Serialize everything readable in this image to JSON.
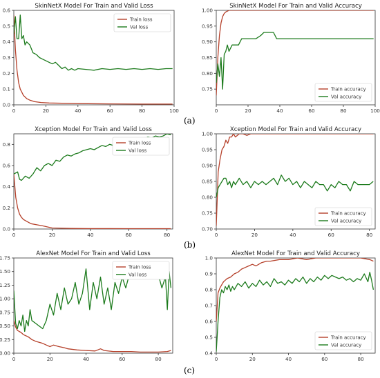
{
  "panel_labels": [
    "(a)",
    "(b)",
    "(c)"
  ],
  "colors": {
    "train": "#b5402a",
    "val": "#1b7a1b"
  },
  "chart_data": [
    {
      "type": "line",
      "title": "SkinNetX Model For Train and Valid Loss",
      "xlabel": "",
      "ylabel": "",
      "xlim": [
        0,
        100
      ],
      "ylim": [
        0,
        0.6
      ],
      "xticks": [
        "0",
        "20",
        "40",
        "60",
        "80",
        "100"
      ],
      "yticks": [
        "0.0",
        "0.1",
        "0.2",
        "0.3",
        "0.4",
        "0.5",
        "0.6"
      ],
      "legend": "top-right",
      "grid": false,
      "series": [
        {
          "name": "Train loss",
          "x": [
            0,
            1,
            2,
            3,
            4,
            5,
            6,
            8,
            10,
            13,
            17,
            22,
            30,
            40,
            60,
            80,
            99
          ],
          "y": [
            0.57,
            0.35,
            0.22,
            0.14,
            0.1,
            0.08,
            0.06,
            0.04,
            0.03,
            0.02,
            0.015,
            0.012,
            0.01,
            0.008,
            0.006,
            0.005,
            0.005
          ]
        },
        {
          "name": "Val loss",
          "x": [
            0,
            1,
            2,
            3,
            4,
            5,
            6,
            7,
            8,
            10,
            12,
            14,
            16,
            18,
            20,
            22,
            24,
            26,
            28,
            30,
            32,
            34,
            36,
            38,
            40,
            45,
            50,
            55,
            60,
            65,
            70,
            75,
            80,
            85,
            90,
            95,
            99
          ],
          "y": [
            0.45,
            0.56,
            0.42,
            0.42,
            0.57,
            0.42,
            0.44,
            0.38,
            0.4,
            0.38,
            0.33,
            0.32,
            0.3,
            0.29,
            0.28,
            0.27,
            0.26,
            0.27,
            0.25,
            0.23,
            0.24,
            0.22,
            0.23,
            0.22,
            0.23,
            0.225,
            0.22,
            0.23,
            0.225,
            0.23,
            0.225,
            0.23,
            0.225,
            0.23,
            0.225,
            0.23,
            0.23
          ]
        }
      ]
    },
    {
      "type": "line",
      "title": "SkinNetX Model For Train and Valid Accuracy",
      "xlabel": "",
      "ylabel": "",
      "xlim": [
        0,
        100
      ],
      "ylim": [
        0.7,
        1.0
      ],
      "xticks": [
        "0",
        "20",
        "40",
        "60",
        "80",
        "100"
      ],
      "yticks": [
        "0.75",
        "0.80",
        "0.85",
        "0.90",
        "0.95",
        "1.00"
      ],
      "legend": "bottom-right",
      "grid": false,
      "series": [
        {
          "name": "Train accuracy",
          "x": [
            0,
            1,
            2,
            3,
            4,
            5,
            6,
            8,
            10,
            15,
            20,
            40,
            60,
            80,
            99
          ],
          "y": [
            0.73,
            0.85,
            0.92,
            0.96,
            0.98,
            0.99,
            0.995,
            1.0,
            1.0,
            1.0,
            1.0,
            1.0,
            1.0,
            1.0,
            1.0
          ]
        },
        {
          "name": "Val accuracy",
          "x": [
            0,
            1,
            2,
            3,
            4,
            5,
            6,
            7,
            8,
            10,
            12,
            14,
            16,
            18,
            20,
            25,
            28,
            30,
            32,
            34,
            36,
            37,
            38,
            40,
            45,
            50,
            60,
            70,
            80,
            90,
            99
          ],
          "y": [
            0.77,
            0.83,
            0.79,
            0.85,
            0.75,
            0.86,
            0.87,
            0.89,
            0.87,
            0.89,
            0.89,
            0.89,
            0.91,
            0.91,
            0.91,
            0.91,
            0.92,
            0.93,
            0.93,
            0.93,
            0.93,
            0.92,
            0.91,
            0.91,
            0.91,
            0.91,
            0.91,
            0.91,
            0.91,
            0.91,
            0.91
          ]
        }
      ]
    },
    {
      "type": "line",
      "title": "Xception Model For Train and Valid Loss",
      "xlabel": "",
      "ylabel": "",
      "xlim": [
        0,
        83
      ],
      "ylim": [
        0,
        0.9
      ],
      "xticks": [
        "0",
        "20",
        "40",
        "60",
        "80"
      ],
      "yticks": [
        "0.0",
        "0.2",
        "0.4",
        "0.6",
        "0.8"
      ],
      "legend": "top-right",
      "grid": false,
      "series": [
        {
          "name": "Train loss",
          "x": [
            0,
            1,
            2,
            3,
            4,
            5,
            7,
            9,
            12,
            15,
            20,
            30,
            40,
            50,
            60,
            70,
            82
          ],
          "y": [
            0.52,
            0.3,
            0.2,
            0.14,
            0.11,
            0.09,
            0.07,
            0.05,
            0.04,
            0.03,
            0.01,
            0.005,
            0.004,
            0.004,
            0.003,
            0.003,
            0.003
          ]
        },
        {
          "name": "Val loss",
          "x": [
            0,
            2,
            3,
            4,
            6,
            8,
            10,
            12,
            14,
            16,
            18,
            20,
            22,
            24,
            26,
            28,
            30,
            32,
            34,
            36,
            38,
            40,
            42,
            44,
            46,
            48,
            50,
            52,
            54,
            56,
            58,
            60,
            62,
            64,
            66,
            68,
            70,
            72,
            74,
            76,
            78,
            80,
            82
          ],
          "y": [
            0.52,
            0.54,
            0.47,
            0.46,
            0.5,
            0.48,
            0.52,
            0.58,
            0.55,
            0.6,
            0.62,
            0.6,
            0.65,
            0.64,
            0.68,
            0.7,
            0.69,
            0.71,
            0.72,
            0.74,
            0.75,
            0.76,
            0.75,
            0.77,
            0.79,
            0.78,
            0.8,
            0.79,
            0.81,
            0.83,
            0.82,
            0.84,
            0.85,
            0.83,
            0.86,
            0.85,
            0.87,
            0.86,
            0.88,
            0.87,
            0.88,
            0.9,
            0.89
          ]
        }
      ]
    },
    {
      "type": "line",
      "title": "Xception Model For Train and Valid Accuracy",
      "xlabel": "",
      "ylabel": "",
      "xlim": [
        0,
        83
      ],
      "ylim": [
        0.7,
        1.0
      ],
      "xticks": [
        "0",
        "20",
        "40",
        "60",
        "80"
      ],
      "yticks": [
        "0.70",
        "0.75",
        "0.80",
        "0.85",
        "0.90",
        "0.95",
        "1.00"
      ],
      "legend": "bottom-right",
      "grid": false,
      "series": [
        {
          "name": "Train accuracy",
          "x": [
            0,
            1,
            2,
            3,
            4,
            5,
            6,
            7,
            8,
            9,
            10,
            12,
            14,
            16,
            18,
            20,
            30,
            40,
            50,
            60,
            70,
            82
          ],
          "y": [
            0.71,
            0.88,
            0.92,
            0.95,
            0.96,
            0.98,
            0.97,
            0.99,
            0.99,
            1.0,
            0.99,
            1.0,
            1.0,
            0.995,
            1.0,
            1.0,
            1.0,
            1.0,
            1.0,
            1.0,
            1.0,
            1.0
          ]
        },
        {
          "name": "Val accuracy",
          "x": [
            0,
            1,
            2,
            3,
            4,
            5,
            6,
            7,
            8,
            9,
            10,
            12,
            14,
            16,
            18,
            20,
            22,
            24,
            26,
            28,
            30,
            32,
            34,
            36,
            38,
            40,
            42,
            44,
            46,
            48,
            50,
            52,
            54,
            56,
            58,
            60,
            62,
            64,
            66,
            68,
            70,
            72,
            74,
            76,
            78,
            80,
            82
          ],
          "y": [
            0.8,
            0.83,
            0.84,
            0.85,
            0.86,
            0.86,
            0.84,
            0.85,
            0.83,
            0.85,
            0.84,
            0.86,
            0.84,
            0.85,
            0.83,
            0.85,
            0.84,
            0.85,
            0.84,
            0.85,
            0.86,
            0.84,
            0.87,
            0.85,
            0.86,
            0.84,
            0.85,
            0.83,
            0.85,
            0.84,
            0.83,
            0.85,
            0.84,
            0.84,
            0.82,
            0.84,
            0.83,
            0.85,
            0.84,
            0.84,
            0.82,
            0.85,
            0.84,
            0.84,
            0.84,
            0.84,
            0.85
          ]
        }
      ]
    },
    {
      "type": "line",
      "title": "AlexNet Model For Train and Valid Loss",
      "xlabel": "",
      "ylabel": "",
      "xlim": [
        0,
        88
      ],
      "ylim": [
        0,
        1.75
      ],
      "xticks": [
        "0",
        "20",
        "40",
        "60",
        "80"
      ],
      "yticks": [
        "0.00",
        "0.25",
        "0.50",
        "0.75",
        "1.00",
        "1.25",
        "1.50",
        "1.75"
      ],
      "legend": "top-right",
      "grid": false,
      "series": [
        {
          "name": "Train loss",
          "x": [
            0,
            1,
            2,
            3,
            4,
            5,
            6,
            8,
            10,
            12,
            14,
            16,
            18,
            20,
            22,
            25,
            28,
            30,
            35,
            40,
            45,
            48,
            50,
            55,
            60,
            65,
            70,
            75,
            80,
            85,
            87
          ],
          "y": [
            0.6,
            0.48,
            0.42,
            0.4,
            0.38,
            0.35,
            0.33,
            0.3,
            0.25,
            0.22,
            0.2,
            0.18,
            0.15,
            0.12,
            0.15,
            0.12,
            0.1,
            0.08,
            0.06,
            0.05,
            0.04,
            0.08,
            0.05,
            0.03,
            0.03,
            0.03,
            0.02,
            0.02,
            0.02,
            0.03,
            0.05
          ]
        },
        {
          "name": "Val loss",
          "x": [
            0,
            1,
            2,
            3,
            4,
            5,
            6,
            7,
            8,
            9,
            10,
            12,
            14,
            16,
            18,
            20,
            22,
            24,
            26,
            28,
            30,
            32,
            34,
            36,
            38,
            40,
            42,
            44,
            46,
            48,
            50,
            52,
            54,
            56,
            58,
            60,
            62,
            64,
            66,
            68,
            70,
            72,
            74,
            76,
            78,
            80,
            82,
            84,
            85,
            86,
            87
          ],
          "y": [
            1.15,
            0.55,
            0.45,
            0.6,
            0.5,
            0.7,
            0.4,
            0.6,
            0.5,
            0.8,
            0.6,
            0.55,
            0.5,
            0.45,
            0.6,
            0.9,
            0.7,
            1.1,
            0.8,
            1.2,
            0.9,
            1.0,
            1.3,
            0.9,
            1.1,
            1.55,
            0.8,
            1.3,
            1.0,
            1.4,
            0.9,
            1.2,
            0.8,
            1.3,
            1.1,
            1.4,
            1.2,
            1.45,
            1.5,
            1.4,
            1.5,
            1.55,
            1.5,
            1.4,
            1.5,
            1.45,
            1.2,
            1.4,
            0.8,
            1.5,
            1.2
          ]
        }
      ]
    },
    {
      "type": "line",
      "title": "AlexNet Model For Train and Valid Accuracy",
      "xlabel": "",
      "ylabel": "",
      "xlim": [
        0,
        88
      ],
      "ylim": [
        0.4,
        1.0
      ],
      "xticks": [
        "0",
        "20",
        "40",
        "60",
        "80"
      ],
      "yticks": [
        "0.4",
        "0.5",
        "0.6",
        "0.7",
        "0.8",
        "0.9",
        "1.0"
      ],
      "legend": "bottom-right",
      "grid": false,
      "series": [
        {
          "name": "Train accuracy",
          "x": [
            0,
            1,
            2,
            3,
            4,
            5,
            6,
            8,
            10,
            12,
            14,
            16,
            18,
            20,
            22,
            25,
            28,
            30,
            35,
            40,
            45,
            50,
            55,
            60,
            65,
            70,
            75,
            80,
            85,
            87
          ],
          "y": [
            0.6,
            0.78,
            0.81,
            0.83,
            0.85,
            0.86,
            0.87,
            0.88,
            0.9,
            0.91,
            0.93,
            0.94,
            0.95,
            0.96,
            0.95,
            0.97,
            0.98,
            0.98,
            0.99,
            0.99,
            1.0,
            0.99,
            1.0,
            1.0,
            1.0,
            1.0,
            1.0,
            1.0,
            0.99,
            0.98
          ]
        },
        {
          "name": "Val accuracy",
          "x": [
            0,
            1,
            2,
            3,
            4,
            5,
            6,
            7,
            8,
            9,
            10,
            12,
            14,
            16,
            18,
            20,
            22,
            24,
            26,
            28,
            30,
            32,
            34,
            36,
            38,
            40,
            42,
            44,
            46,
            48,
            50,
            52,
            54,
            56,
            58,
            60,
            62,
            64,
            66,
            68,
            70,
            72,
            74,
            76,
            78,
            80,
            82,
            84,
            85,
            86,
            87
          ],
          "y": [
            0.41,
            0.6,
            0.75,
            0.8,
            0.78,
            0.82,
            0.8,
            0.83,
            0.79,
            0.82,
            0.8,
            0.84,
            0.82,
            0.85,
            0.81,
            0.84,
            0.82,
            0.86,
            0.83,
            0.85,
            0.82,
            0.87,
            0.84,
            0.85,
            0.83,
            0.86,
            0.84,
            0.87,
            0.85,
            0.88,
            0.84,
            0.87,
            0.85,
            0.88,
            0.86,
            0.89,
            0.87,
            0.89,
            0.88,
            0.87,
            0.88,
            0.86,
            0.87,
            0.85,
            0.87,
            0.86,
            0.9,
            0.85,
            0.91,
            0.86,
            0.8
          ]
        }
      ]
    }
  ]
}
